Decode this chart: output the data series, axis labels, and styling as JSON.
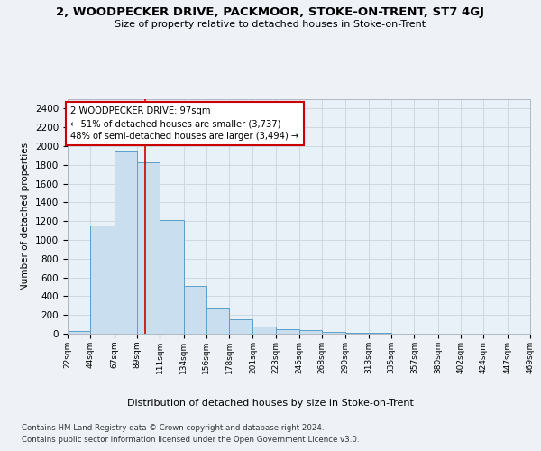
{
  "title": "2, WOODPECKER DRIVE, PACKMOOR, STOKE-ON-TRENT, ST7 4GJ",
  "subtitle": "Size of property relative to detached houses in Stoke-on-Trent",
  "xlabel": "Distribution of detached houses by size in Stoke-on-Trent",
  "ylabel": "Number of detached properties",
  "bar_values": [
    30,
    1150,
    1950,
    1830,
    1210,
    510,
    270,
    150,
    80,
    45,
    35,
    20,
    12,
    5,
    3,
    2,
    2,
    1,
    1,
    1
  ],
  "bin_edges": [
    22,
    44,
    67,
    89,
    111,
    134,
    156,
    178,
    201,
    223,
    246,
    268,
    290,
    313,
    335,
    357,
    380,
    402,
    424,
    447,
    469
  ],
  "tick_labels": [
    "22sqm",
    "44sqm",
    "67sqm",
    "89sqm",
    "111sqm",
    "134sqm",
    "156sqm",
    "178sqm",
    "201sqm",
    "223sqm",
    "246sqm",
    "268sqm",
    "290sqm",
    "313sqm",
    "335sqm",
    "357sqm",
    "380sqm",
    "402sqm",
    "424sqm",
    "447sqm",
    "469sqm"
  ],
  "bar_color": "#c9dff0",
  "bar_edge_color": "#5b9ec9",
  "vline_x": 97,
  "vline_color": "#cc0000",
  "annotation_text": "2 WOODPECKER DRIVE: 97sqm\n← 51% of detached houses are smaller (3,737)\n48% of semi-detached houses are larger (3,494) →",
  "annotation_box_color": "white",
  "annotation_box_edge": "#cc0000",
  "ylim": [
    0,
    2500
  ],
  "yticks": [
    0,
    200,
    400,
    600,
    800,
    1000,
    1200,
    1400,
    1600,
    1800,
    2000,
    2200,
    2400
  ],
  "footer_line1": "Contains HM Land Registry data © Crown copyright and database right 2024.",
  "footer_line2": "Contains public sector information licensed under the Open Government Licence v3.0.",
  "bg_color": "#eef2f7",
  "plot_bg_color": "#e8f0f8"
}
